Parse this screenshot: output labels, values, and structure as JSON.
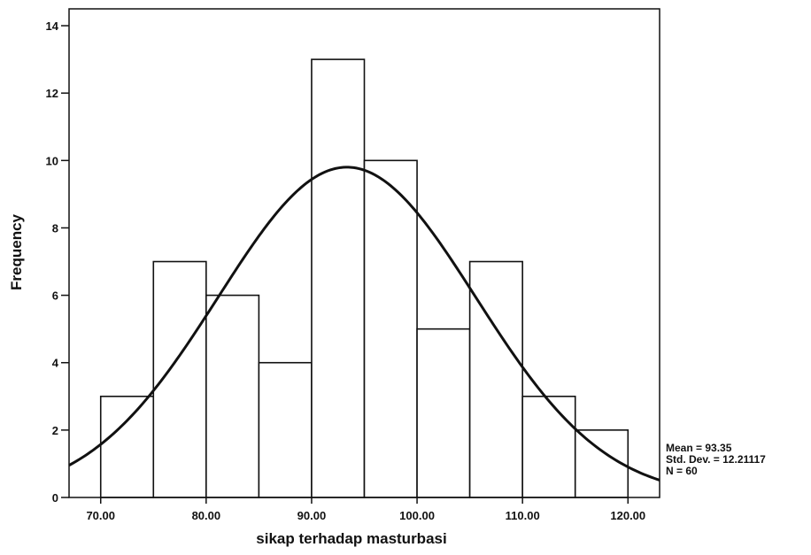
{
  "chart_data": {
    "type": "bar",
    "subtype": "histogram",
    "xlabel": "sikap terhadap masturbasi",
    "ylabel": "Frequency",
    "bin_width": 5,
    "bins": [
      {
        "start": 70,
        "end": 75,
        "count": 3
      },
      {
        "start": 75,
        "end": 80,
        "count": 7
      },
      {
        "start": 80,
        "end": 85,
        "count": 6
      },
      {
        "start": 85,
        "end": 90,
        "count": 4
      },
      {
        "start": 90,
        "end": 95,
        "count": 13
      },
      {
        "start": 95,
        "end": 100,
        "count": 10
      },
      {
        "start": 100,
        "end": 105,
        "count": 5
      },
      {
        "start": 105,
        "end": 110,
        "count": 7
      },
      {
        "start": 110,
        "end": 115,
        "count": 3
      },
      {
        "start": 115,
        "end": 120,
        "count": 2
      }
    ],
    "xlim": [
      67,
      123
    ],
    "ylim": [
      0,
      14.5
    ],
    "x_ticks": [
      70,
      80,
      90,
      100,
      110,
      120
    ],
    "x_tick_labels": [
      "70.00",
      "80.00",
      "90.00",
      "100.00",
      "110.00",
      "120.00"
    ],
    "y_ticks": [
      0,
      2,
      4,
      6,
      8,
      10,
      12,
      14
    ],
    "y_tick_labels": [
      "0",
      "2",
      "4",
      "6",
      "8",
      "10",
      "12",
      "14"
    ],
    "normal_curve": {
      "mean": 93.35,
      "std": 12.21117,
      "n": 60
    },
    "grid": false,
    "stats_box": {
      "mean_label": "Mean = 93.35",
      "std_label": "Std. Dev. = 12.21117",
      "n_label": "N = 60"
    },
    "colors": {
      "bar_fill": "#ffffff",
      "bar_stroke": "#111111",
      "curve": "#111111"
    }
  }
}
